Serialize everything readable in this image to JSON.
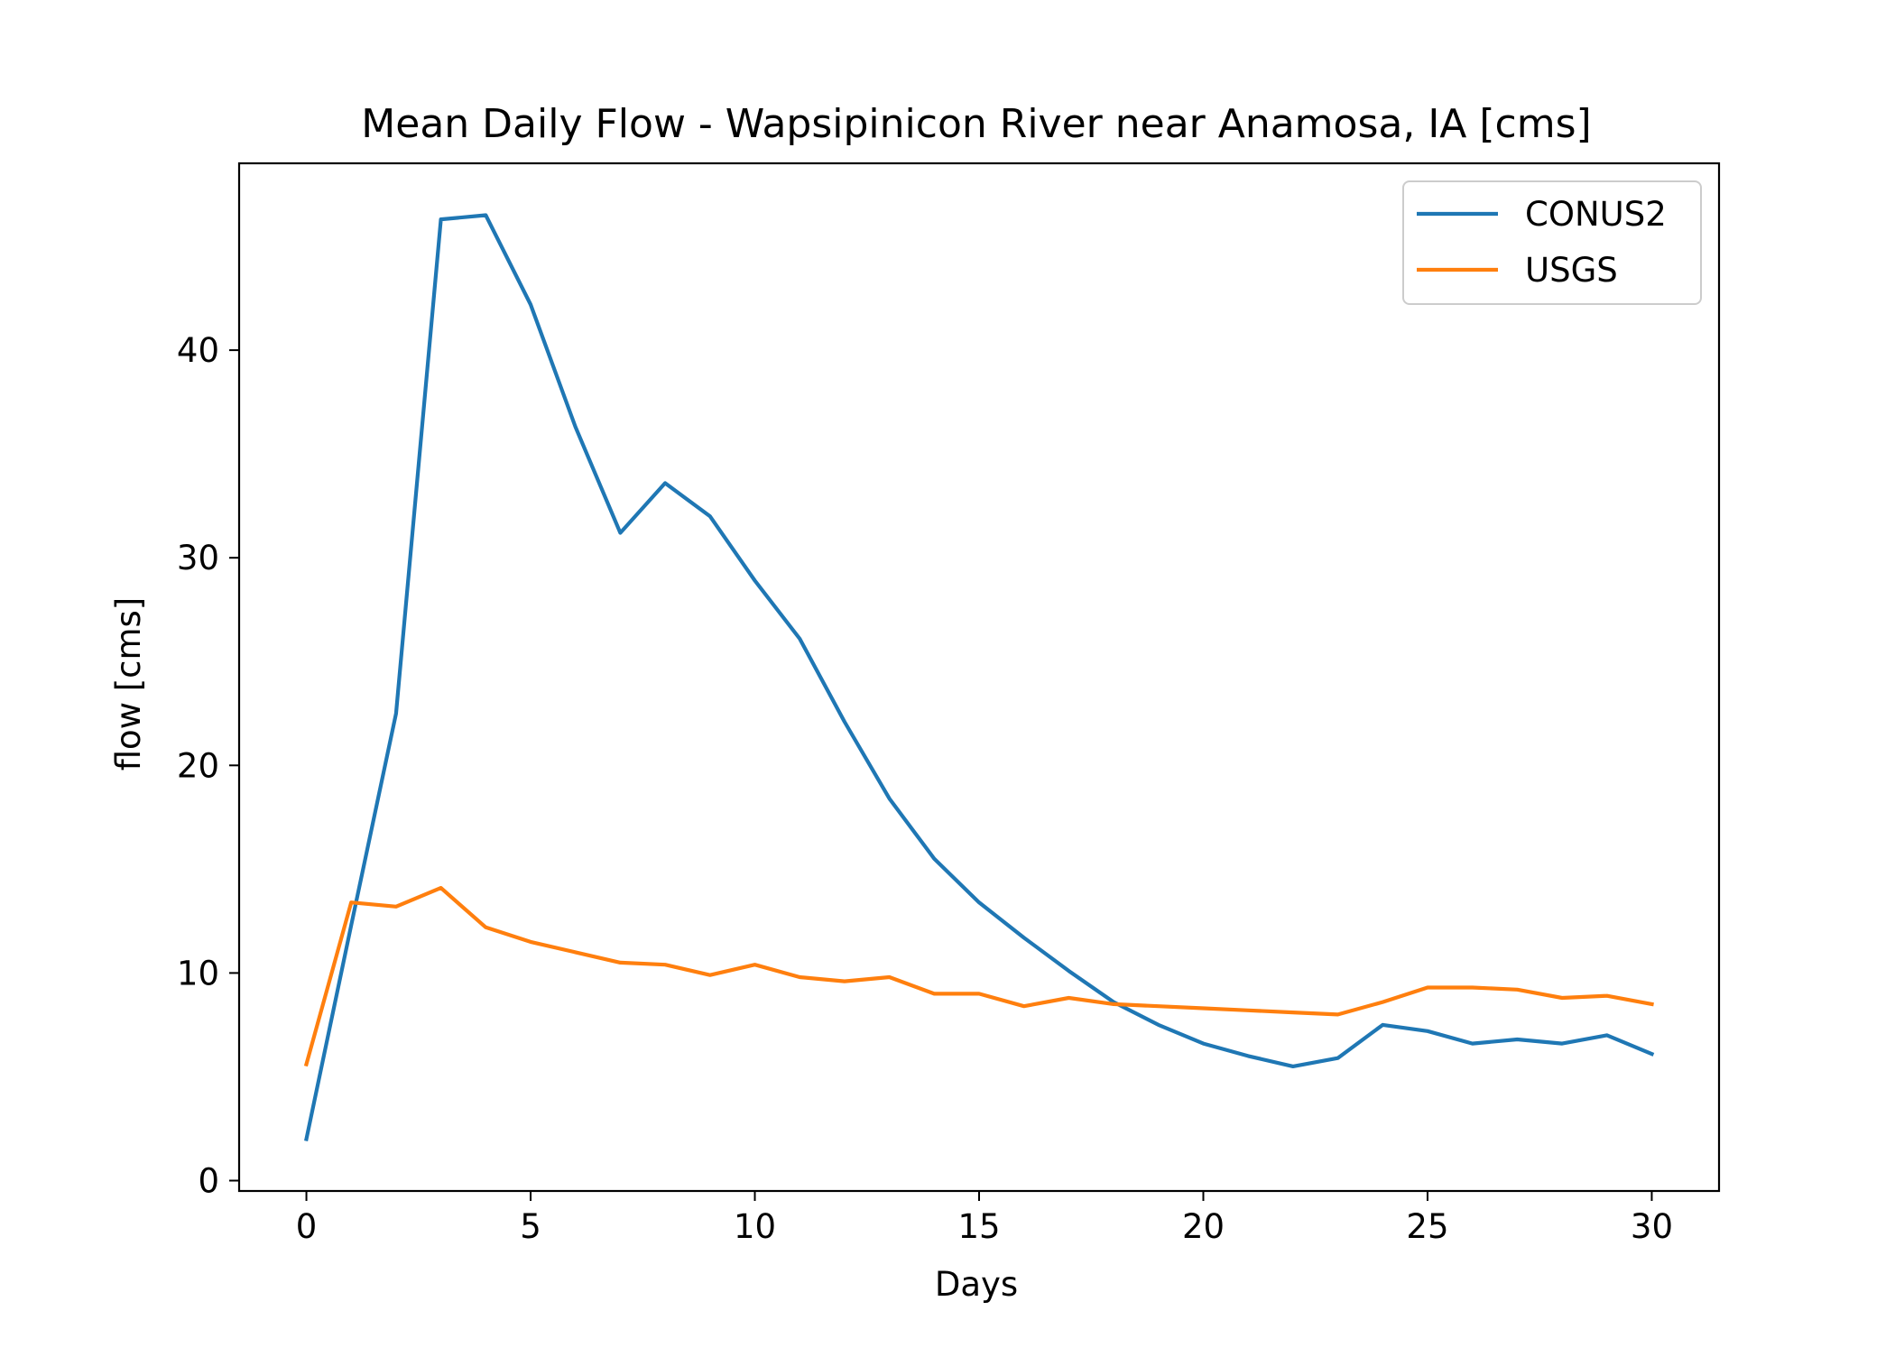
{
  "chart_data": {
    "type": "line",
    "title": "Mean Daily Flow - Wapsipinicon River near Anamosa, IA [cms]",
    "xlabel": "Days",
    "ylabel": "flow [cms]",
    "xlim": [
      -1.5,
      31.5
    ],
    "ylim": [
      -0.5,
      49
    ],
    "xticks": [
      0,
      5,
      10,
      15,
      20,
      25,
      30
    ],
    "yticks": [
      0,
      10,
      20,
      30,
      40
    ],
    "grid": false,
    "legend_position": "top-right",
    "x": [
      0,
      1,
      2,
      3,
      4,
      5,
      6,
      7,
      8,
      9,
      10,
      11,
      12,
      13,
      14,
      15,
      16,
      17,
      18,
      19,
      20,
      21,
      22,
      23,
      24,
      25,
      26,
      27,
      28,
      29,
      30
    ],
    "series": [
      {
        "name": "CONUS2",
        "color": "#1f77b4",
        "values": [
          2.0,
          12.3,
          22.5,
          46.3,
          46.5,
          42.2,
          36.3,
          31.2,
          33.6,
          32.0,
          28.9,
          26.1,
          22.1,
          18.4,
          15.5,
          13.4,
          11.7,
          10.1,
          8.6,
          7.5,
          6.6,
          6.0,
          5.5,
          5.9,
          7.5,
          7.2,
          6.6,
          6.8,
          6.6,
          7.0,
          6.1
        ]
      },
      {
        "name": "USGS",
        "color": "#ff7f0e",
        "values": [
          5.6,
          13.4,
          13.2,
          14.1,
          12.2,
          11.5,
          11.0,
          10.5,
          10.4,
          9.9,
          10.4,
          9.8,
          9.6,
          9.8,
          9.0,
          9.0,
          8.4,
          8.8,
          8.5,
          8.4,
          8.3,
          8.2,
          8.1,
          8.0,
          8.6,
          9.3,
          9.3,
          9.2,
          8.8,
          8.9,
          8.5
        ]
      }
    ]
  }
}
